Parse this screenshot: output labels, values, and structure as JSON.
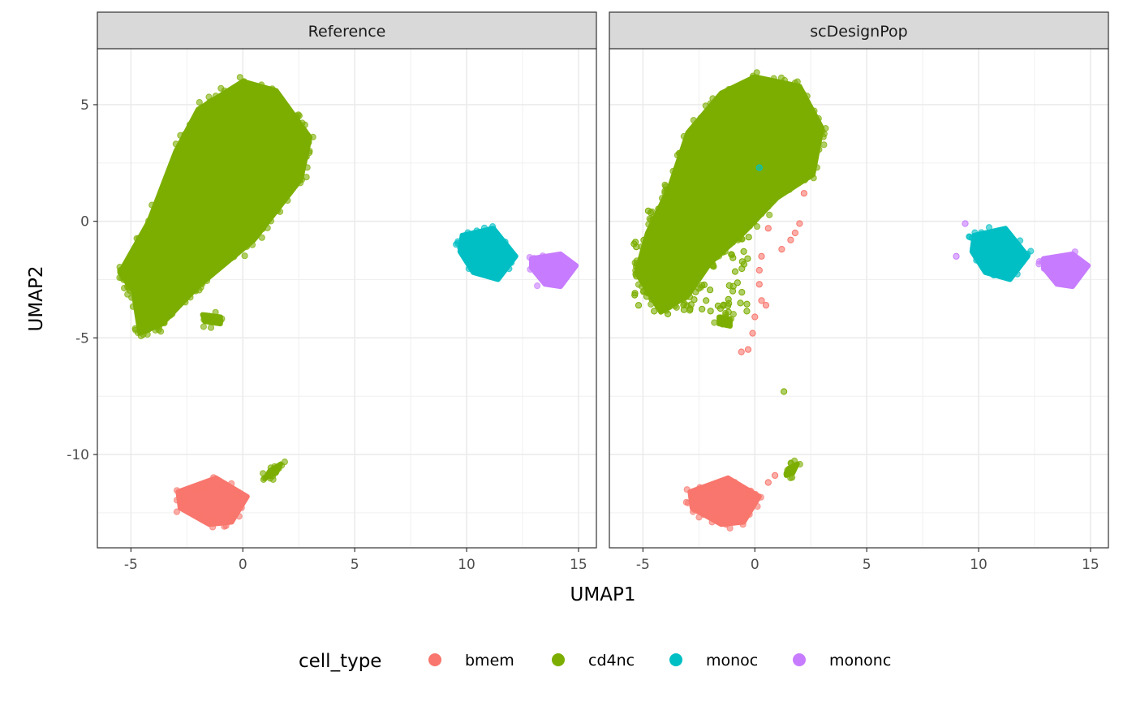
{
  "chart_data": {
    "type": "scatter",
    "xlabel": "UMAP1",
    "ylabel": "UMAP2",
    "xlim": [
      -6.5,
      15.8
    ],
    "ylim": [
      -14.0,
      7.4
    ],
    "x_ticks": [
      -5,
      0,
      5,
      10,
      15
    ],
    "x_tick_labels": [
      "-5",
      "0",
      "5",
      "10",
      "15"
    ],
    "y_ticks": [
      5,
      0,
      -5,
      -10
    ],
    "y_tick_labels": [
      "5",
      "0",
      "-5",
      "-10"
    ],
    "grid": true,
    "legend": {
      "title": "cell_type",
      "position": "bottom",
      "entries": [
        {
          "label": "bmem",
          "color": "#F8766D"
        },
        {
          "label": "cd4nc",
          "color": "#7CAE00"
        },
        {
          "label": "monoc",
          "color": "#00BFC4"
        },
        {
          "label": "mononc",
          "color": "#C77CFF"
        }
      ]
    },
    "panels": [
      {
        "strip": "Reference",
        "clusters": [
          {
            "cell_type": "cd4nc",
            "note_outline": [
              [
                -4.6,
                -4.8
              ],
              [
                -4.9,
                -3.0
              ],
              [
                -5.5,
                -2.2
              ],
              [
                -4.2,
                0.0
              ],
              [
                -3.0,
                3.0
              ],
              [
                -2.0,
                4.8
              ],
              [
                0.0,
                6.0
              ],
              [
                1.5,
                5.6
              ],
              [
                3.0,
                3.6
              ],
              [
                2.6,
                1.8
              ],
              [
                0.5,
                -0.8
              ],
              [
                -2.0,
                -2.8
              ],
              [
                -3.6,
                -4.4
              ]
            ]
          },
          {
            "cell_type": "cd4nc",
            "outline": [
              [
                -1.8,
                -4.0
              ],
              [
                -1.0,
                -4.1
              ],
              [
                -1.0,
                -4.4
              ],
              [
                -1.7,
                -4.3
              ]
            ]
          },
          {
            "cell_type": "bmem",
            "outline": [
              [
                -2.9,
                -11.6
              ],
              [
                -1.2,
                -11.0
              ],
              [
                0.2,
                -11.8
              ],
              [
                -0.5,
                -12.9
              ],
              [
                -1.5,
                -13.0
              ],
              [
                -2.8,
                -12.3
              ]
            ]
          },
          {
            "cell_type": "cd4nc",
            "outline": [
              [
                1.2,
                -10.7
              ],
              [
                1.7,
                -10.4
              ],
              [
                1.5,
                -10.8
              ],
              [
                1.0,
                -11.0
              ]
            ]
          },
          {
            "cell_type": "monoc",
            "outline": [
              [
                9.8,
                -0.6
              ],
              [
                11.2,
                -0.3
              ],
              [
                12.2,
                -1.5
              ],
              [
                11.4,
                -2.5
              ],
              [
                10.3,
                -2.2
              ],
              [
                9.7,
                -1.3
              ]
            ]
          },
          {
            "cell_type": "mononc",
            "outline": [
              [
                12.9,
                -1.6
              ],
              [
                14.2,
                -1.4
              ],
              [
                14.9,
                -1.9
              ],
              [
                14.2,
                -2.8
              ],
              [
                13.5,
                -2.7
              ],
              [
                12.9,
                -2.0
              ]
            ]
          }
        ]
      },
      {
        "strip": "scDesignPop",
        "clusters": [
          {
            "cell_type": "cd4nc",
            "outline": [
              [
                -4.2,
                -3.9
              ],
              [
                -5.3,
                -2.2
              ],
              [
                -4.8,
                -0.5
              ],
              [
                -3.8,
                1.5
              ],
              [
                -3.0,
                3.8
              ],
              [
                -1.5,
                5.5
              ],
              [
                0.0,
                6.2
              ],
              [
                2.0,
                5.8
              ],
              [
                3.0,
                4.0
              ],
              [
                2.6,
                2.0
              ],
              [
                1.0,
                1.0
              ],
              [
                -0.5,
                -0.5
              ],
              [
                -2.0,
                -1.8
              ],
              [
                -3.0,
                -3.2
              ]
            ]
          },
          {
            "cell_type": "cd4nc",
            "outline": [
              [
                -1.6,
                -4.1
              ],
              [
                -1.1,
                -4.2
              ],
              [
                -1.1,
                -4.5
              ],
              [
                -1.6,
                -4.4
              ]
            ]
          },
          {
            "cell_type": "bmem",
            "outline": [
              [
                -2.9,
                -11.6
              ],
              [
                -1.2,
                -11.0
              ],
              [
                0.2,
                -11.8
              ],
              [
                -0.5,
                -12.9
              ],
              [
                -1.5,
                -13.0
              ],
              [
                -2.8,
                -12.3
              ]
            ]
          },
          {
            "cell_type": "cd4nc",
            "outline": [
              [
                1.5,
                -10.6
              ],
              [
                1.9,
                -10.4
              ],
              [
                1.7,
                -10.8
              ],
              [
                1.4,
                -10.9
              ]
            ]
          },
          {
            "cell_type": "monoc",
            "outline": [
              [
                9.8,
                -0.6
              ],
              [
                11.2,
                -0.3
              ],
              [
                12.2,
                -1.5
              ],
              [
                11.4,
                -2.5
              ],
              [
                10.3,
                -2.2
              ],
              [
                9.7,
                -1.3
              ]
            ]
          },
          {
            "cell_type": "mononc",
            "outline": [
              [
                12.9,
                -1.6
              ],
              [
                14.2,
                -1.4
              ],
              [
                14.9,
                -1.9
              ],
              [
                14.2,
                -2.8
              ],
              [
                13.5,
                -2.7
              ],
              [
                12.9,
                -2.0
              ]
            ]
          }
        ],
        "points": [
          {
            "cell_type": "bmem",
            "x": 2.2,
            "y": 1.2
          },
          {
            "cell_type": "bmem",
            "x": 2.0,
            "y": -0.1
          },
          {
            "cell_type": "bmem",
            "x": 1.8,
            "y": -0.5
          },
          {
            "cell_type": "bmem",
            "x": 1.6,
            "y": -0.8
          },
          {
            "cell_type": "bmem",
            "x": 1.2,
            "y": -1.2
          },
          {
            "cell_type": "bmem",
            "x": 0.6,
            "y": -0.3
          },
          {
            "cell_type": "bmem",
            "x": 0.3,
            "y": -1.5
          },
          {
            "cell_type": "bmem",
            "x": 0.2,
            "y": -2.1
          },
          {
            "cell_type": "bmem",
            "x": 0.2,
            "y": -2.7
          },
          {
            "cell_type": "bmem",
            "x": 0.3,
            "y": -3.4
          },
          {
            "cell_type": "bmem",
            "x": 0.5,
            "y": -3.6
          },
          {
            "cell_type": "bmem",
            "x": 0.0,
            "y": -4.1
          },
          {
            "cell_type": "bmem",
            "x": -0.1,
            "y": -4.8
          },
          {
            "cell_type": "bmem",
            "x": -0.6,
            "y": -5.6
          },
          {
            "cell_type": "bmem",
            "x": -0.3,
            "y": -5.5
          },
          {
            "cell_type": "bmem",
            "x": 0.6,
            "y": -11.2
          },
          {
            "cell_type": "bmem",
            "x": 0.9,
            "y": -10.9
          },
          {
            "cell_type": "cd4nc",
            "x": 1.3,
            "y": -7.3
          },
          {
            "cell_type": "mononc",
            "x": 9.4,
            "y": -0.1
          },
          {
            "cell_type": "mononc",
            "x": 9.0,
            "y": -1.5
          },
          {
            "cell_type": "monoc",
            "x": 0.2,
            "y": 2.3
          }
        ]
      }
    ]
  }
}
